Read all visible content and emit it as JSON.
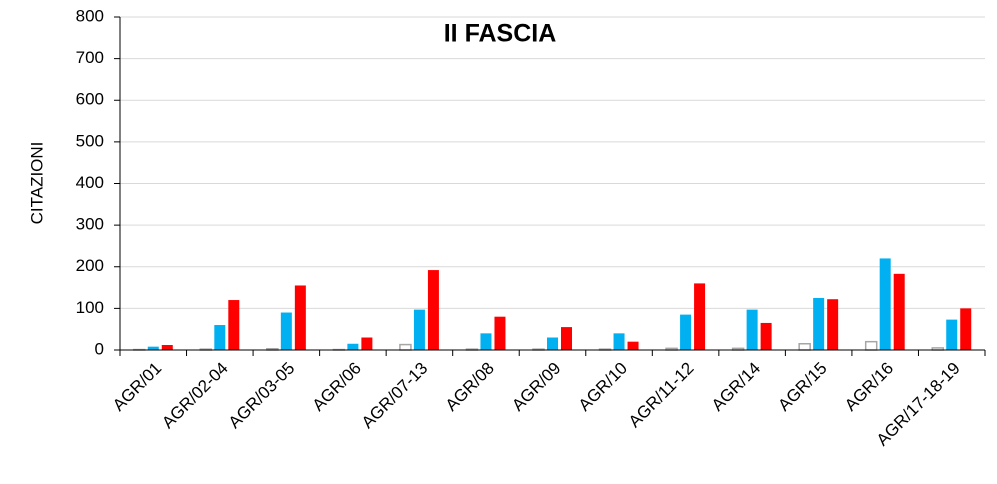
{
  "chart_data": {
    "type": "bar",
    "title": "II FASCIA",
    "y_label": "CITAZIONI",
    "categories": [
      "AGR/01",
      "AGR/02-04",
      "AGR/03-05",
      "AGR/06",
      "AGR/07-13",
      "AGR/08",
      "AGR/09",
      "AGR/10",
      "AGR/11-12",
      "AGR/14",
      "AGR/15",
      "AGR/16",
      "AGR/17-18-19"
    ],
    "series": [
      {
        "color": "#ffffff",
        "values": [
          1,
          2,
          3,
          1,
          13,
          2,
          2,
          2,
          4,
          4,
          15,
          20,
          5
        ]
      },
      {
        "color": "#00b0f0",
        "values": [
          8,
          60,
          90,
          15,
          97,
          40,
          30,
          40,
          85,
          97,
          125,
          220,
          73
        ]
      },
      {
        "color": "#ff0000",
        "values": [
          12,
          120,
          155,
          30,
          192,
          80,
          55,
          20,
          160,
          65,
          122,
          183,
          100
        ]
      }
    ],
    "ylim": [
      0,
      800
    ],
    "yticks": [
      0,
      100,
      200,
      300,
      400,
      500,
      600,
      700,
      800
    ],
    "grid": true
  }
}
